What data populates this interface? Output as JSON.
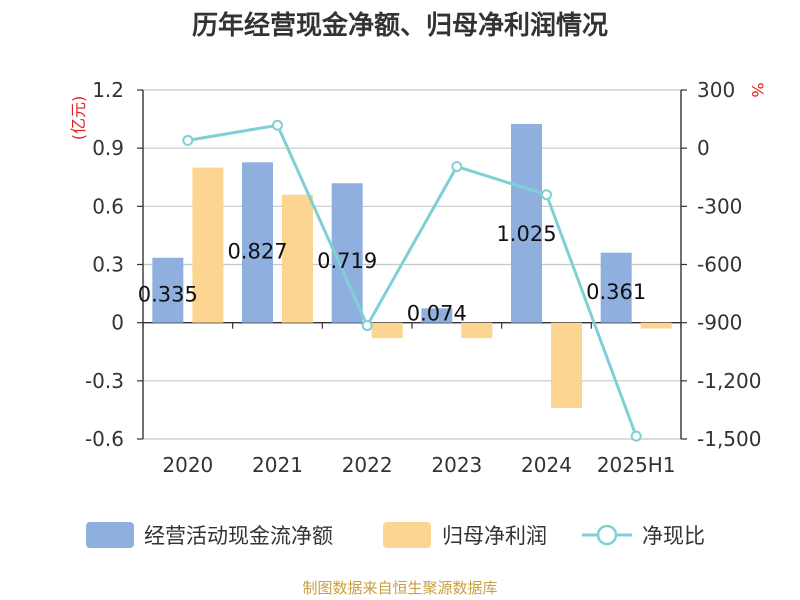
{
  "chart_data": {
    "type": "bar",
    "title": "历年经营现金净额、归母净利润情况",
    "categories": [
      "2020",
      "2021",
      "2022",
      "2023",
      "2024",
      "2025H1"
    ],
    "y_left_unit": "(亿元)",
    "y_right_unit": "%",
    "y_left_ticks": [
      "1.2",
      "0.9",
      "0.6",
      "0.3",
      "0",
      "-0.3",
      "-0.6"
    ],
    "y_right_ticks": [
      "300",
      "0",
      "-300",
      "-600",
      "-900",
      "-1,200",
      "-1,500"
    ],
    "ylim_left": [
      -0.6,
      1.2
    ],
    "ylim_right": [
      -1500,
      300
    ],
    "grid": true,
    "legend_position": "bottom",
    "series": [
      {
        "name": "经营活动现金流净额",
        "type": "bar",
        "axis": "left",
        "color": "#8fb0de",
        "values": [
          0.335,
          0.827,
          0.719,
          0.074,
          1.025,
          0.361
        ],
        "labels": [
          "0.335",
          "0.827",
          "0.719",
          "0.074",
          "1.025",
          "0.361"
        ]
      },
      {
        "name": "归母净利润",
        "type": "bar",
        "axis": "left",
        "color": "#fdd593",
        "values": [
          0.8,
          0.66,
          -0.08,
          -0.08,
          -0.44,
          -0.03
        ]
      },
      {
        "name": "净现比",
        "type": "line",
        "axis": "right",
        "color": "#7fd0d4",
        "values": [
          40,
          118,
          -915,
          -95,
          -240,
          -1485
        ]
      }
    ],
    "source": "制图数据来自恒生聚源数据库"
  }
}
